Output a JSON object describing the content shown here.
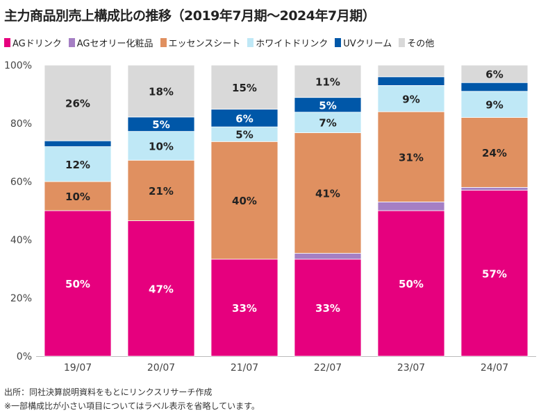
{
  "title": "主力商品別売上構成比の推移（2019年7月期〜2024年7月期）",
  "notes": {
    "source": "出所：同社決算説明資料をもとにリンクスリサーチ作成",
    "note": "※一部構成比が小さい項目についてはラベル表示を省略しています。"
  },
  "chart_data": {
    "type": "bar",
    "stacked": true,
    "title": "主力商品別売上構成比の推移（2019年7月期〜2024年7月期）",
    "categories": [
      "19/07",
      "20/07",
      "21/07",
      "22/07",
      "23/07",
      "24/07"
    ],
    "ylim": [
      0,
      100
    ],
    "yticks": [
      "0%",
      "20%",
      "40%",
      "60%",
      "80%",
      "100%"
    ],
    "grid": false,
    "legend_position": "top-left",
    "series": [
      {
        "name": "AGドリンク",
        "color": "#e6007e",
        "values": [
          50,
          47,
          33,
          33,
          50,
          57
        ],
        "labels": [
          "50%",
          "47%",
          "33%",
          "33%",
          "50%",
          "57%"
        ],
        "label_color": "#ffffff"
      },
      {
        "name": "AGセオリー化粧品",
        "color": "#a57fc4",
        "values": [
          0,
          0,
          0,
          2,
          3,
          1
        ],
        "labels": [
          "",
          "",
          "",
          "",
          "",
          ""
        ],
        "label_color": "#222222"
      },
      {
        "name": "エッセンスシート",
        "color": "#e09060",
        "values": [
          10,
          21,
          40,
          41,
          31,
          24
        ],
        "labels": [
          "10%",
          "21%",
          "40%",
          "41%",
          "31%",
          "24%"
        ],
        "label_color": "#222222"
      },
      {
        "name": "ホワイトドリンク",
        "color": "#bfe8f6",
        "values": [
          12,
          10,
          5,
          7,
          9,
          9
        ],
        "labels": [
          "12%",
          "10%",
          "5%",
          "7%",
          "9%",
          "9%"
        ],
        "label_color": "#222222"
      },
      {
        "name": "UVクリーム",
        "color": "#0057a8",
        "values": [
          2,
          5,
          6,
          5,
          3,
          3
        ],
        "labels": [
          "",
          "5%",
          "6%",
          "5%",
          "",
          ""
        ],
        "label_color": "#ffffff"
      },
      {
        "name": "その他",
        "color": "#d9d9d9",
        "values": [
          26,
          18,
          15,
          11,
          4,
          6
        ],
        "labels": [
          "26%",
          "18%",
          "15%",
          "11%",
          "",
          "6%"
        ],
        "label_color": "#222222"
      }
    ]
  }
}
